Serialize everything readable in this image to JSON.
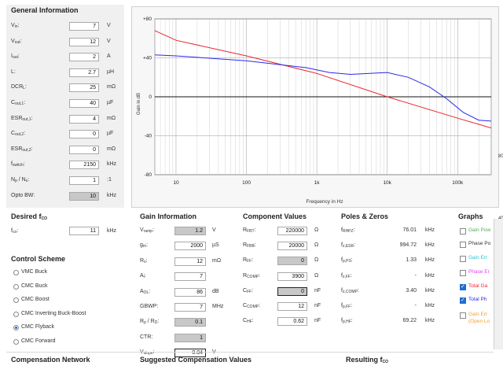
{
  "general": {
    "title": "General Information",
    "rows": [
      {
        "label": "V",
        "sub": "in",
        "value": "7",
        "unit": "V",
        "style": ""
      },
      {
        "label": "V",
        "sub": "out",
        "value": "12",
        "unit": "V",
        "style": ""
      },
      {
        "label": "I",
        "sub": "out",
        "value": "2",
        "unit": "A",
        "style": ""
      },
      {
        "label": "L:",
        "sub": "",
        "value": "2.7",
        "unit": "µH",
        "style": ""
      },
      {
        "label": "DCR",
        "sub": "L",
        "value": "25",
        "unit": "mΩ",
        "style": ""
      },
      {
        "label": "C",
        "sub": "out,1",
        "value": "40",
        "unit": "µF",
        "style": ""
      },
      {
        "label": "ESR",
        "sub": "out,1",
        "value": "4",
        "unit": "mΩ",
        "style": ""
      },
      {
        "label": "C",
        "sub": "out,2",
        "value": "0",
        "unit": "µF",
        "style": ""
      },
      {
        "label": "ESR",
        "sub": "out,2",
        "value": "0",
        "unit": "mΩ",
        "style": ""
      },
      {
        "label": "f",
        "sub": "switch",
        "value": "2150",
        "unit": "kHz",
        "style": ""
      },
      {
        "label": "N",
        "sub": "p",
        "label2": " / N",
        "sub2": "s",
        "value": "1",
        "unit": ":1",
        "style": ""
      },
      {
        "label": "Opto BW:",
        "sub": "",
        "value": "10",
        "unit": "kHz",
        "style": "gray"
      }
    ]
  },
  "plot": {
    "ylabel": "Gain in dB",
    "xlabel": "Frequency in Hz",
    "yticks": [
      "+80",
      "+40",
      "0",
      "-40",
      "-80"
    ],
    "xticks": [
      "10",
      "100",
      "1k",
      "10k",
      "100k"
    ],
    "side_labels": [
      "80",
      "40"
    ],
    "colors": {
      "red": "#e8262d",
      "blue": "#2a2ae8"
    }
  },
  "desired": {
    "title": "Desired f",
    "title_sub": "CO",
    "label": "f",
    "label_sub": "co",
    "value": "11",
    "unit": "kHz"
  },
  "control": {
    "title": "Control Scheme",
    "options": [
      {
        "label": "VMC Buck",
        "selected": false
      },
      {
        "label": "CMC Buck",
        "selected": false
      },
      {
        "label": "CMC Boost",
        "selected": false
      },
      {
        "label": "CMC Inverting Buck-Boost",
        "selected": false
      },
      {
        "label": "CMC Flyback",
        "selected": true
      },
      {
        "label": "CMC Forward",
        "selected": false
      }
    ]
  },
  "gain": {
    "title": "Gain Information",
    "rows": [
      {
        "label": "V",
        "sub": "ramp",
        "value": "1.2",
        "unit": "V",
        "style": "gray"
      },
      {
        "label": "g",
        "sub": "m",
        "value": "2000",
        "unit": "µS",
        "style": ""
      },
      {
        "label": "R",
        "sub": "s",
        "value": "12",
        "unit": "mΩ",
        "style": ""
      },
      {
        "label": "A",
        "sub": "i",
        "value": "7",
        "unit": "",
        "style": ""
      },
      {
        "label": "A",
        "sub": "OL",
        "value": "86",
        "unit": "dB",
        "style": ""
      },
      {
        "label": "GBWP:",
        "sub": "",
        "value": "7",
        "unit": "MHz",
        "style": ""
      },
      {
        "label": "R",
        "sub": "p",
        "label2": " / R",
        "sub2": "D",
        "value": "0.1",
        "unit": "",
        "style": "gray"
      },
      {
        "label": "CTR:",
        "sub": "",
        "value": "1",
        "unit": "",
        "style": "gray"
      },
      {
        "label": "V",
        "sub": "slope",
        "value": "0.04",
        "unit": "V",
        "style": "dark"
      }
    ]
  },
  "component": {
    "title": "Component Values",
    "rows": [
      {
        "label": "R",
        "sub": "FBT",
        "value": "220000",
        "unit": "Ω",
        "style": ""
      },
      {
        "label": "R",
        "sub": "FBB",
        "value": "20000",
        "unit": "Ω",
        "style": ""
      },
      {
        "label": "R",
        "sub": "FF",
        "value": "0",
        "unit": "Ω",
        "style": "gray"
      },
      {
        "label": "R",
        "sub": "COMP",
        "value": "3900",
        "unit": "Ω",
        "style": ""
      },
      {
        "label": "C",
        "sub": "FF",
        "value": "0",
        "unit": "nF",
        "style": "graydark"
      },
      {
        "label": "C",
        "sub": "COMP",
        "value": "12",
        "unit": "nF",
        "style": ""
      },
      {
        "label": "C",
        "sub": "HF",
        "value": "0.62",
        "unit": "nF",
        "style": ""
      }
    ]
  },
  "poles": {
    "title": "Poles & Zeros",
    "rows": [
      {
        "label": "f",
        "sub": "RHPZ",
        "value": "76.01",
        "unit": "kHz"
      },
      {
        "label": "f",
        "sub": "z,ESR",
        "value": "994.72",
        "unit": "kHz"
      },
      {
        "label": "f",
        "sub": "p,PS",
        "value": "1.33",
        "unit": "kHz"
      },
      {
        "label": "f",
        "sub": "z,FF",
        "value": "-",
        "unit": "kHz"
      },
      {
        "label": "f",
        "sub": "z,COMP",
        "value": "3.40",
        "unit": "kHz"
      },
      {
        "label": "f",
        "sub": "p,FF",
        "value": "-",
        "unit": "kHz"
      },
      {
        "label": "f",
        "sub": "p,HF",
        "value": "69.22",
        "unit": "kHz"
      }
    ]
  },
  "graphs": {
    "title": "Graphs",
    "items": [
      {
        "label": "Gain Pow",
        "checked": false,
        "color": "#4caf50"
      },
      {
        "label": "Phase Po",
        "checked": false,
        "color": "#333333"
      },
      {
        "label": "Gain Err",
        "checked": false,
        "color": "#26c6da"
      },
      {
        "label": "Phase Er",
        "checked": false,
        "color": "#e040fb"
      },
      {
        "label": "Total Ga",
        "checked": true,
        "color": "#e8262d"
      },
      {
        "label": "Total Ph",
        "checked": true,
        "color": "#2a2ae8"
      },
      {
        "label": "Gain Err",
        "checked": false,
        "color": "#f0a030"
      },
      {
        "label": "(Open Lo",
        "checked": false,
        "color": "#f0a030"
      }
    ]
  },
  "footer": {
    "comp_network": "Compensation Network",
    "suggested": "Suggested Compensation Values",
    "resulting": "Resulting f",
    "resulting_sub": "CO"
  }
}
